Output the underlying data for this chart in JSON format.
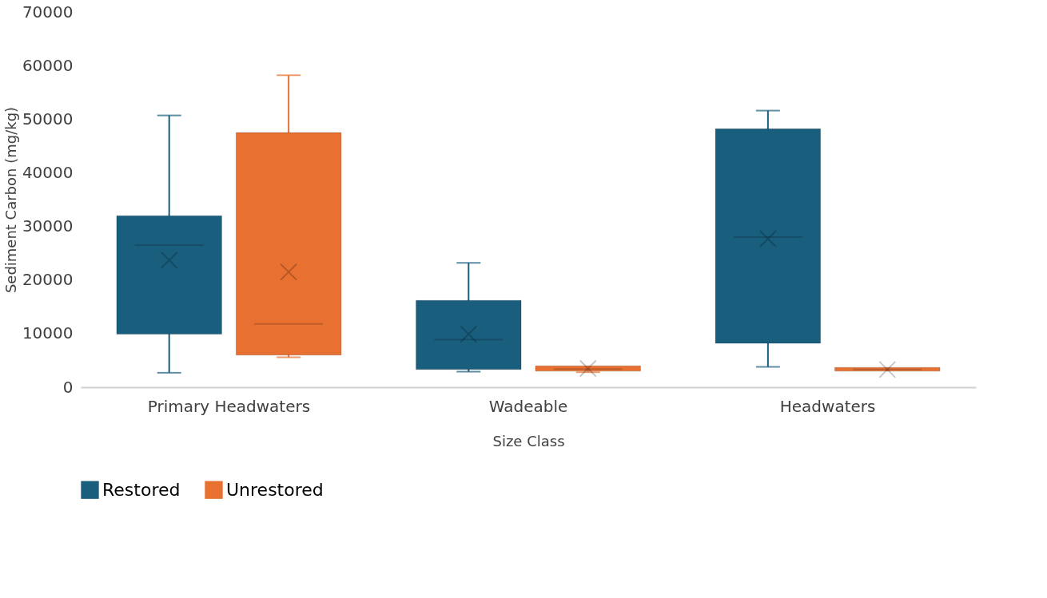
{
  "chart_data": {
    "type": "box",
    "xlabel": "Size Class",
    "ylabel": "Sediment Carbon (mg/kg)",
    "categories": [
      "Primary Headwaters",
      "Wadeable",
      "Headwaters"
    ],
    "ylim": [
      0,
      70000
    ],
    "yticks": [
      0,
      10000,
      20000,
      30000,
      40000,
      50000,
      60000,
      70000
    ],
    "grid": false,
    "legend": "bottom",
    "series": [
      {
        "name": "Restored",
        "color": "#1a5e7e",
        "boxes": [
          {
            "low": 2700,
            "q1": 9900,
            "median": 26500,
            "q3": 32000,
            "high": 50700,
            "mean": 23700
          },
          {
            "low": 2900,
            "q1": 3300,
            "median": 8900,
            "q3": 16200,
            "high": 23200,
            "mean": 9900
          },
          {
            "low": 3800,
            "q1": 8200,
            "median": 28000,
            "q3": 48200,
            "high": 51600,
            "mean": 27700
          }
        ]
      },
      {
        "name": "Unrestored",
        "color": "#e87031",
        "boxes": [
          {
            "low": 5600,
            "q1": 6000,
            "median": 11800,
            "q3": 47500,
            "high": 58200,
            "mean": 21500
          },
          {
            "low": 2800,
            "q1": 3000,
            "median": 3400,
            "q3": 4000,
            "high": 4000,
            "mean": 3500
          },
          {
            "low": 3000,
            "q1": 3000,
            "median": 3300,
            "q3": 3700,
            "high": 3700,
            "mean": 3300
          }
        ]
      }
    ]
  }
}
